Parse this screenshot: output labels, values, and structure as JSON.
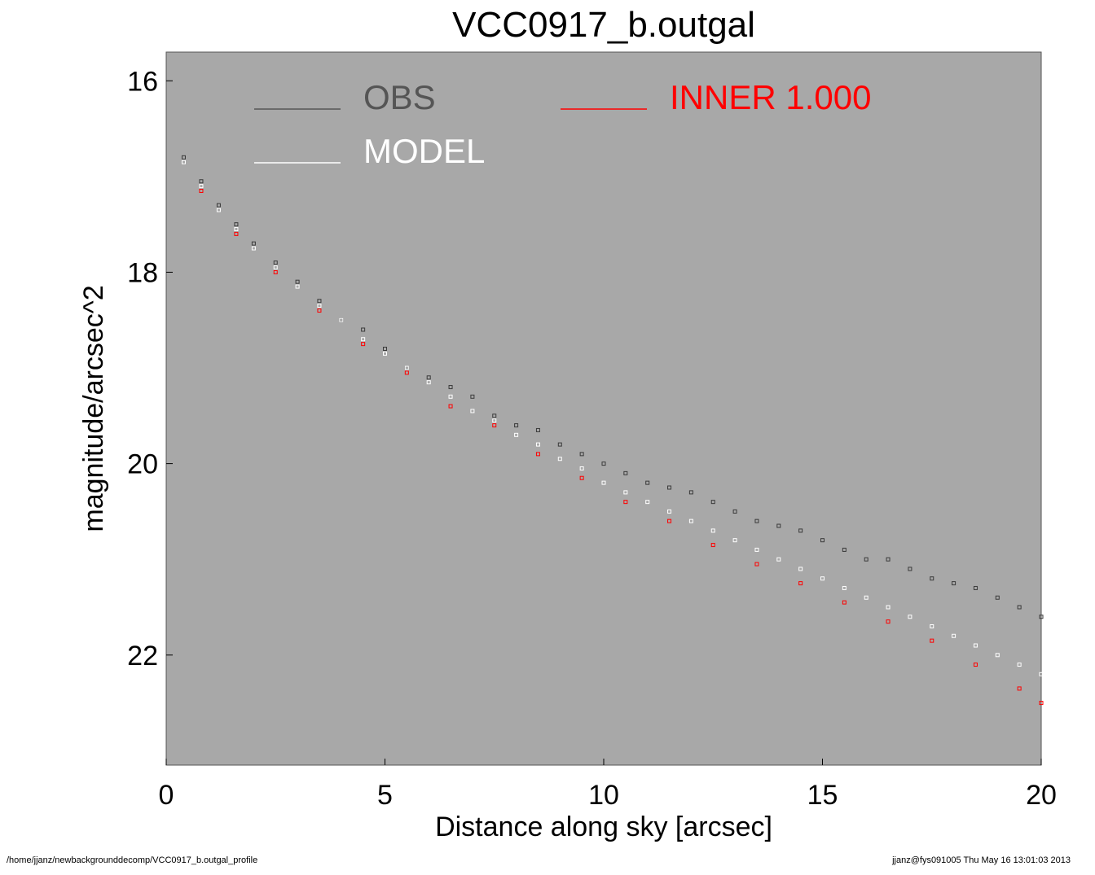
{
  "chart_data": {
    "type": "scatter",
    "title": "VCC0917_b.outgal",
    "xlabel": "Distance along sky [arcsec]",
    "ylabel": "magnitude/arcsec^2",
    "xlim": [
      0,
      20
    ],
    "ylim": [
      23.15,
      15.7
    ],
    "y_inverted": true,
    "x_ticks": [
      0,
      5,
      10,
      15,
      20
    ],
    "x_tick_labels": [
      "0",
      "5",
      "10",
      "15",
      "20"
    ],
    "y_ticks": [
      16,
      18,
      20,
      22
    ],
    "y_tick_labels": [
      "16",
      "18",
      "20",
      "22"
    ],
    "grid": false,
    "plot_background": "#a8a8a8",
    "legend_position": "top",
    "legend": [
      {
        "label": "OBS",
        "color": "#555555"
      },
      {
        "label": "INNER  1.000",
        "color": "#ff0000"
      },
      {
        "label": "MODEL",
        "color": "#ffffff"
      }
    ],
    "series": [
      {
        "name": "OBS",
        "color": "#3a3a3a",
        "marker": "square-open",
        "points": [
          [
            0.4,
            16.8
          ],
          [
            0.8,
            17.05
          ],
          [
            1.2,
            17.3
          ],
          [
            1.6,
            17.5
          ],
          [
            2.0,
            17.7
          ],
          [
            2.5,
            17.9
          ],
          [
            3.0,
            18.1
          ],
          [
            3.5,
            18.3
          ],
          [
            4.0,
            18.5
          ],
          [
            4.5,
            18.6
          ],
          [
            5.0,
            18.8
          ],
          [
            5.5,
            19.0
          ],
          [
            6.0,
            19.1
          ],
          [
            6.5,
            19.2
          ],
          [
            7.0,
            19.3
          ],
          [
            7.5,
            19.5
          ],
          [
            8.0,
            19.6
          ],
          [
            8.5,
            19.65
          ],
          [
            9.0,
            19.8
          ],
          [
            9.5,
            19.9
          ],
          [
            10.0,
            20.0
          ],
          [
            10.5,
            20.1
          ],
          [
            11.0,
            20.2
          ],
          [
            11.5,
            20.25
          ],
          [
            12.0,
            20.3
          ],
          [
            12.5,
            20.4
          ],
          [
            13.0,
            20.5
          ],
          [
            13.5,
            20.6
          ],
          [
            14.0,
            20.65
          ],
          [
            14.5,
            20.7
          ],
          [
            15.0,
            20.8
          ],
          [
            15.5,
            20.9
          ],
          [
            16.0,
            21.0
          ],
          [
            16.5,
            21.0
          ],
          [
            17.0,
            21.1
          ],
          [
            17.5,
            21.2
          ],
          [
            18.0,
            21.25
          ],
          [
            18.5,
            21.3
          ],
          [
            19.0,
            21.4
          ],
          [
            19.5,
            21.5
          ],
          [
            20.0,
            21.6
          ]
        ]
      },
      {
        "name": "MODEL",
        "color": "#ffffff",
        "marker": "square-open",
        "points": [
          [
            0.4,
            16.85
          ],
          [
            0.8,
            17.1
          ],
          [
            1.2,
            17.35
          ],
          [
            1.6,
            17.55
          ],
          [
            2.0,
            17.75
          ],
          [
            2.5,
            17.95
          ],
          [
            3.0,
            18.15
          ],
          [
            3.5,
            18.35
          ],
          [
            4.0,
            18.5
          ],
          [
            4.5,
            18.7
          ],
          [
            5.0,
            18.85
          ],
          [
            5.5,
            19.0
          ],
          [
            6.0,
            19.15
          ],
          [
            6.5,
            19.3
          ],
          [
            7.0,
            19.45
          ],
          [
            7.5,
            19.55
          ],
          [
            8.0,
            19.7
          ],
          [
            8.5,
            19.8
          ],
          [
            9.0,
            19.95
          ],
          [
            9.5,
            20.05
          ],
          [
            10.0,
            20.2
          ],
          [
            10.5,
            20.3
          ],
          [
            11.0,
            20.4
          ],
          [
            11.5,
            20.5
          ],
          [
            12.0,
            20.6
          ],
          [
            12.5,
            20.7
          ],
          [
            13.0,
            20.8
          ],
          [
            13.5,
            20.9
          ],
          [
            14.0,
            21.0
          ],
          [
            14.5,
            21.1
          ],
          [
            15.0,
            21.2
          ],
          [
            15.5,
            21.3
          ],
          [
            16.0,
            21.4
          ],
          [
            16.5,
            21.5
          ],
          [
            17.0,
            21.6
          ],
          [
            17.5,
            21.7
          ],
          [
            18.0,
            21.8
          ],
          [
            18.5,
            21.9
          ],
          [
            19.0,
            22.0
          ],
          [
            19.5,
            22.1
          ],
          [
            20.0,
            22.2
          ]
        ]
      },
      {
        "name": "INNER  1.000",
        "color": "#ff0000",
        "marker": "square-open",
        "points": [
          [
            0.8,
            17.15
          ],
          [
            1.6,
            17.6
          ],
          [
            2.5,
            18.0
          ],
          [
            3.5,
            18.4
          ],
          [
            4.5,
            18.75
          ],
          [
            5.5,
            19.05
          ],
          [
            6.5,
            19.4
          ],
          [
            7.5,
            19.6
          ],
          [
            8.5,
            19.9
          ],
          [
            9.5,
            20.15
          ],
          [
            10.5,
            20.4
          ],
          [
            11.5,
            20.6
          ],
          [
            12.5,
            20.85
          ],
          [
            13.5,
            21.05
          ],
          [
            14.5,
            21.25
          ],
          [
            15.5,
            21.45
          ],
          [
            16.5,
            21.65
          ],
          [
            17.5,
            21.85
          ],
          [
            18.5,
            22.1
          ],
          [
            19.5,
            22.35
          ],
          [
            20.0,
            22.5
          ]
        ]
      }
    ]
  },
  "footer": {
    "left": "/home/jjanz/newbackgrounddecomp/VCC0917_b.outgal_profile",
    "right": "jjanz@fys091005  Thu May 16 13:01:03 2013"
  }
}
